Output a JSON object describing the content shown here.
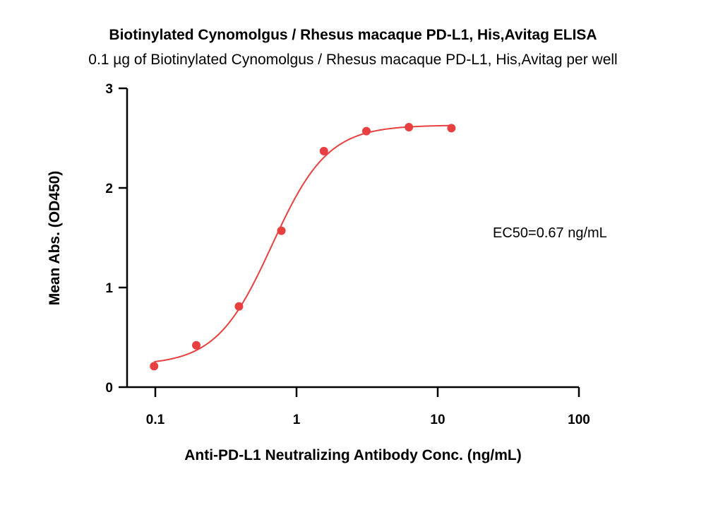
{
  "chart_data": {
    "type": "scatter",
    "title": "Biotinylated Cynomolgus / Rhesus macaque PD-L1, His,Avitag ELISA",
    "subtitle": "0.1 µg of Biotinylated Cynomolgus / Rhesus macaque PD-L1, His,Avitag per well",
    "xlabel": "Anti-PD-L1 Neutralizing Antibody Conc. (ng/mL)",
    "ylabel": "Mean Abs. (OD450)",
    "xscale": "log",
    "xlim": [
      0.1,
      100
    ],
    "ylim": [
      0,
      3
    ],
    "xticks": [
      "0.1",
      "1",
      "10",
      "100"
    ],
    "yticks": [
      "0",
      "1",
      "2",
      "3"
    ],
    "grid": false,
    "annotation": "EC50=0.67 ng/mL",
    "color": "#e84040",
    "series": [
      {
        "x": [
          0.098,
          0.195,
          0.391,
          0.781,
          1.563,
          3.125,
          6.25,
          12.5
        ],
        "y": [
          0.21,
          0.42,
          0.81,
          1.57,
          2.37,
          2.57,
          2.61,
          2.6
        ]
      }
    ],
    "fit": {
      "bottom": 0.22,
      "top": 2.63,
      "ec50": 0.67,
      "hill": 2.2
    }
  }
}
